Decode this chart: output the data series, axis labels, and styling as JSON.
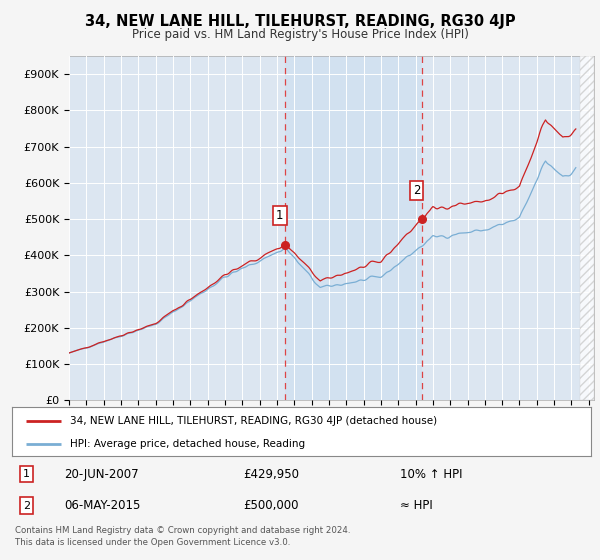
{
  "title": "34, NEW LANE HILL, TILEHURST, READING, RG30 4JP",
  "subtitle": "Price paid vs. HM Land Registry's House Price Index (HPI)",
  "background_color": "#f5f5f5",
  "plot_bg_color": "#dce6f1",
  "shaded_bg_color": "#cfe0f0",
  "grid_color": "#ffffff",
  "yticks": [
    0,
    100000,
    200000,
    300000,
    400000,
    500000,
    600000,
    700000,
    800000,
    900000
  ],
  "ytick_labels": [
    "£0",
    "£100K",
    "£200K",
    "£300K",
    "£400K",
    "£500K",
    "£600K",
    "£700K",
    "£800K",
    "£900K"
  ],
  "ylim": [
    0,
    950000
  ],
  "xlim_start": 1995.0,
  "xlim_end": 2025.3,
  "xtick_years": [
    1995,
    1996,
    1997,
    1998,
    1999,
    2000,
    2001,
    2002,
    2003,
    2004,
    2005,
    2006,
    2007,
    2008,
    2009,
    2010,
    2011,
    2012,
    2013,
    2014,
    2015,
    2016,
    2017,
    2018,
    2019,
    2020,
    2021,
    2022,
    2023,
    2024,
    2025
  ],
  "transaction1_x": 2007.47,
  "transaction1_y": 429950,
  "transaction1_label": "1",
  "transaction1_date": "20-JUN-2007",
  "transaction1_price": "£429,950",
  "transaction1_hpi": "10% ↑ HPI",
  "transaction2_x": 2015.35,
  "transaction2_y": 500000,
  "transaction2_label": "2",
  "transaction2_date": "06-MAY-2015",
  "transaction2_price": "£500,000",
  "transaction2_hpi": "≈ HPI",
  "vline_color": "#dd4444",
  "red_line_color": "#cc2222",
  "blue_line_color": "#7aaed4",
  "legend1_label": "34, NEW LANE HILL, TILEHURST, READING, RG30 4JP (detached house)",
  "legend2_label": "HPI: Average price, detached house, Reading",
  "footer_text": "Contains HM Land Registry data © Crown copyright and database right 2024.\nThis data is licensed under the Open Government Licence v3.0."
}
